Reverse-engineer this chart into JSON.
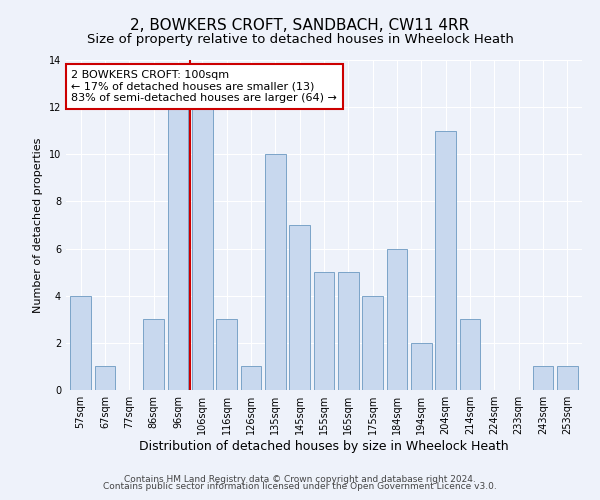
{
  "title": "2, BOWKERS CROFT, SANDBACH, CW11 4RR",
  "subtitle": "Size of property relative to detached houses in Wheelock Heath",
  "xlabel": "Distribution of detached houses by size in Wheelock Heath",
  "ylabel": "Number of detached properties",
  "bar_labels": [
    "57sqm",
    "67sqm",
    "77sqm",
    "86sqm",
    "96sqm",
    "106sqm",
    "116sqm",
    "126sqm",
    "135sqm",
    "145sqm",
    "155sqm",
    "165sqm",
    "175sqm",
    "184sqm",
    "194sqm",
    "204sqm",
    "214sqm",
    "224sqm",
    "233sqm",
    "243sqm",
    "253sqm"
  ],
  "bar_values": [
    4,
    1,
    0,
    3,
    12,
    12,
    3,
    1,
    10,
    7,
    5,
    5,
    4,
    6,
    2,
    11,
    3,
    0,
    0,
    1,
    1
  ],
  "bar_color": "#c8d8ee",
  "bar_edge_color": "#7ba3c8",
  "red_line_index": 4,
  "ylim": [
    0,
    14
  ],
  "yticks": [
    0,
    2,
    4,
    6,
    8,
    10,
    12,
    14
  ],
  "annotation_line1": "2 BOWKERS CROFT: 100sqm",
  "annotation_line2": "← 17% of detached houses are smaller (13)",
  "annotation_line3": "83% of semi-detached houses are larger (64) →",
  "annotation_box_color": "#ffffff",
  "annotation_box_edge": "#cc0000",
  "footer_line1": "Contains HM Land Registry data © Crown copyright and database right 2024.",
  "footer_line2": "Contains public sector information licensed under the Open Government Licence v3.0.",
  "background_color": "#eef2fa",
  "grid_color": "#ffffff",
  "title_fontsize": 11,
  "subtitle_fontsize": 9.5,
  "xlabel_fontsize": 9,
  "ylabel_fontsize": 8,
  "tick_fontsize": 7,
  "annotation_fontsize": 8,
  "footer_fontsize": 6.5
}
